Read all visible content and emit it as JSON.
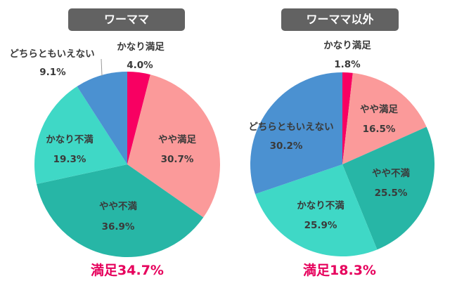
{
  "chart_data": [
    {
      "type": "pie",
      "title": "ワーママ",
      "categories": [
        "かなり満足",
        "やや満足",
        "やや不満",
        "かなり不満",
        "どちらともいえない"
      ],
      "values": [
        4.0,
        30.7,
        36.9,
        19.3,
        9.1
      ],
      "value_labels": [
        "4.0%",
        "30.7%",
        "36.9%",
        "19.3%",
        "9.1%"
      ],
      "summary": "満足34.7%"
    },
    {
      "type": "pie",
      "title": "ワーママ以外",
      "categories": [
        "かなり満足",
        "やや満足",
        "やや不満",
        "かなり不満",
        "どちらともいえない"
      ],
      "values": [
        1.8,
        16.5,
        25.5,
        25.9,
        30.2
      ],
      "value_labels": [
        "1.8%",
        "16.5%",
        "25.5%",
        "25.9%",
        "30.2%"
      ],
      "summary": "満足18.3%"
    }
  ],
  "colors": {
    "かなり満足": "#f80062",
    "やや満足": "#fb9a9a",
    "やや不満": "#27b6a6",
    "かなり不満": "#3fd8c6",
    "どちらともいえない": "#4b91d1",
    "summary": "#e6005c"
  }
}
